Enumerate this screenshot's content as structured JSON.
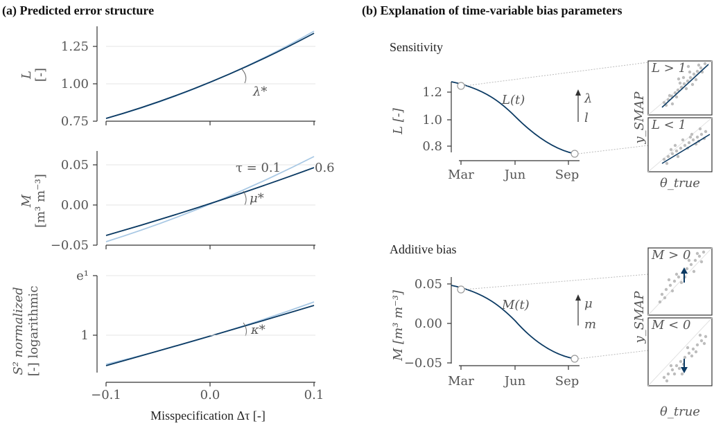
{
  "headers": {
    "a": "(a) Predicted error structure",
    "b": "(b) Explanation of time-variable bias parameters"
  },
  "panel_a": {
    "xlabel": "Misspecification Δτ [-]",
    "x_ticks": [
      "−0.1",
      "0.0",
      "0.1"
    ],
    "L": {
      "ylabel_1": "L",
      "ylabel_2": "[-]",
      "ticks": [
        "1.25",
        "1.00",
        "0.75"
      ],
      "angle_label": "λ*"
    },
    "M": {
      "ylabel_1": "M",
      "ylabel_2": "[m³ m⁻³]",
      "ticks": [
        "0.05",
        "0.00",
        "−0.05"
      ],
      "angle_label": "μ*",
      "tau_label": "τ = 0.1",
      "tau_label_2": "0.6"
    },
    "S": {
      "ylabel_1": "S² normalized",
      "ylabel_2": "[-] logarithmic",
      "ticks": [
        "e¹",
        "1"
      ],
      "angle_label": "κ*"
    }
  },
  "panel_b": {
    "sens": {
      "title": "Sensitivity",
      "ylabel": "L [-]",
      "ticks": [
        "1.2",
        "1.0",
        "0.8"
      ],
      "curve_label": "L(t)",
      "param_1": "λ",
      "param_2": "l",
      "inset_hi": "L > 1",
      "inset_lo": "L < 1"
    },
    "add": {
      "title": "Additive bias",
      "ylabel": "M [m³ m⁻³]",
      "ticks": [
        "0.05",
        "0.00",
        "−0.05"
      ],
      "curve_label": "M(t)",
      "param_1": "μ",
      "param_2": "m",
      "inset_hi": "M > 0",
      "inset_lo": "M < 0"
    },
    "x_ticks": [
      "Mar",
      "Jun",
      "Sep"
    ],
    "inset_ylabel": "y_SMAP",
    "inset_xlabel": "θ_true"
  },
  "chart_data": [
    {
      "type": "line",
      "panel": "a-L",
      "x": [
        -0.1,
        0.0,
        0.1
      ],
      "ylim": [
        0.74,
        1.37
      ],
      "series": [
        {
          "name": "τ = 0.1",
          "values": [
            0.77,
            1.0,
            1.35
          ]
        },
        {
          "name": "0.6",
          "values": [
            0.77,
            1.0,
            1.33
          ]
        }
      ]
    },
    {
      "type": "line",
      "panel": "a-M",
      "x": [
        -0.1,
        0.0,
        0.1
      ],
      "ylim": [
        -0.05,
        0.07
      ],
      "series": [
        {
          "name": "τ = 0.1",
          "values": [
            -0.042,
            0.0,
            0.06
          ]
        },
        {
          "name": "0.6",
          "values": [
            -0.035,
            0.0,
            0.046
          ]
        }
      ]
    },
    {
      "type": "line",
      "panel": "a-S",
      "x": [
        -0.1,
        0.0,
        0.1
      ],
      "yscale": "log",
      "series": [
        {
          "name": "τ = 0.1",
          "values": [
            0.72,
            1.0,
            1.45
          ]
        },
        {
          "name": "0.6",
          "values": [
            0.72,
            1.0,
            1.4
          ]
        }
      ]
    },
    {
      "type": "line",
      "panel": "b-L",
      "x": [
        "Mar",
        "Jun",
        "Sep"
      ],
      "ylim": [
        0.7,
        1.32
      ],
      "series": [
        {
          "values": [
            1.27,
            1.0,
            0.73
          ]
        }
      ]
    },
    {
      "type": "line",
      "panel": "b-M",
      "x": [
        "Mar",
        "Jun",
        "Sep"
      ],
      "ylim": [
        -0.05,
        0.055
      ],
      "series": [
        {
          "values": [
            0.045,
            0.0,
            -0.045
          ]
        }
      ]
    }
  ]
}
